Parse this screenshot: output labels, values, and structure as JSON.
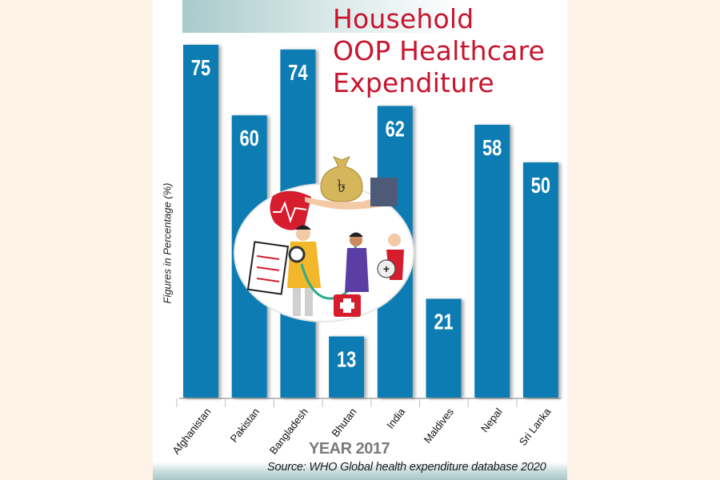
{
  "title": [
    "Household",
    "OOP Healthcare",
    "Expenditure"
  ],
  "ylabel": "Figures in Percentage (%)",
  "xlabel": "YEAR 2017",
  "source": "Source: WHO Global health expenditure database 2020",
  "colors": {
    "bar": "#0b7bb3",
    "title": "#c8142d",
    "page_bg": "#fdf3e7"
  },
  "illustration": {
    "description": "Healthcare workers with stethoscope, clipboard, first-aid kit and a hand receiving a taka money bag",
    "currency_symbol": "৳"
  },
  "chart_data": {
    "type": "bar",
    "title": "Household OOP Healthcare Expenditure",
    "xlabel": "YEAR 2017",
    "ylabel": "Figures in Percentage (%)",
    "categories": [
      "Afghanistan",
      "Pakistan",
      "Bangladesh",
      "Bhutan",
      "India",
      "Maldives",
      "Nepal",
      "Sri Lanka"
    ],
    "values": [
      75,
      60,
      74,
      13,
      62,
      21,
      58,
      50
    ],
    "ylim": [
      0,
      80
    ],
    "grid": false,
    "legend": "none",
    "data_labels": true,
    "source": "Source: WHO Global health expenditure database 2020"
  }
}
